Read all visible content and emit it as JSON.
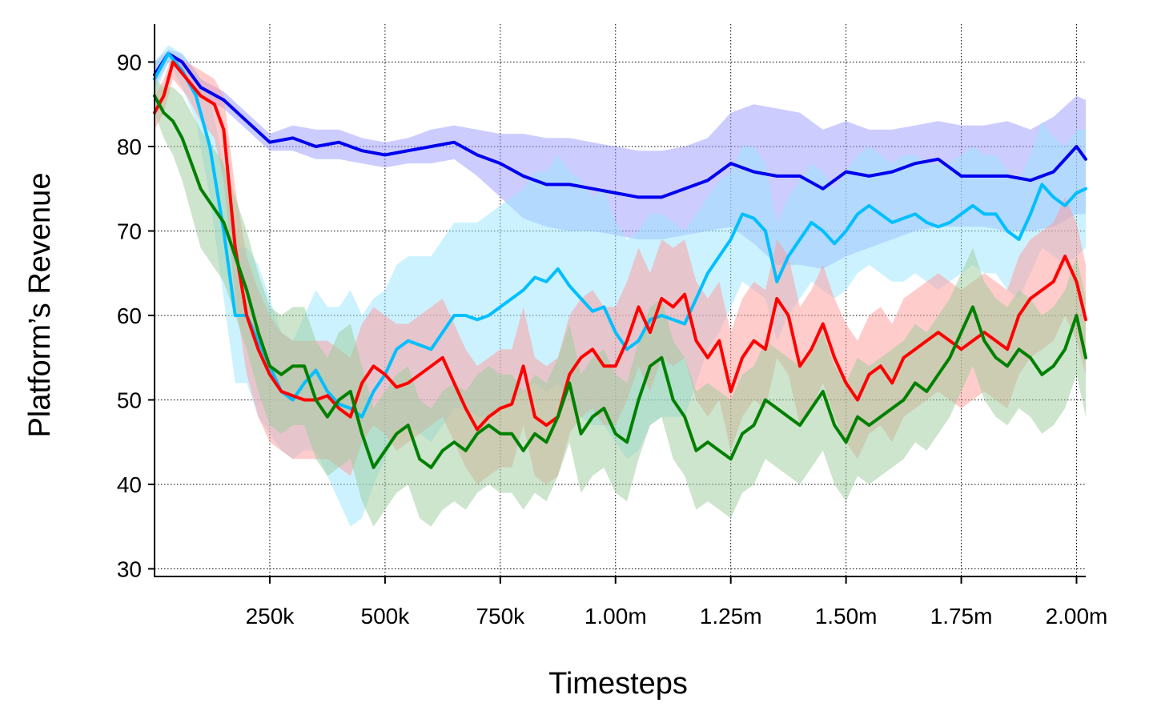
{
  "chart_data": {
    "type": "line",
    "xlabel": "Timesteps",
    "ylabel": "Platform’s Revenue",
    "xlim": [
      0,
      2020000
    ],
    "ylim": [
      29,
      94.5
    ],
    "x_ticks": [
      250000,
      500000,
      750000,
      1000000,
      1250000,
      1500000,
      1750000,
      2000000
    ],
    "x_tick_labels": [
      "250k",
      "500k",
      "750k",
      "1.00m",
      "1.25m",
      "1.50m",
      "1.75m",
      "2.00m"
    ],
    "y_ticks": [
      30,
      40,
      50,
      60,
      70,
      80,
      90
    ],
    "y_tick_labels": [
      "30",
      "40",
      "50",
      "60",
      "70",
      "80",
      "90"
    ],
    "grid": true,
    "series": [
      {
        "color": "#0000ee",
        "band_color": "#9999ff",
        "x": [
          0,
          30000,
          60000,
          100000,
          150000,
          200000,
          250000,
          300000,
          350000,
          400000,
          450000,
          500000,
          550000,
          600000,
          650000,
          700000,
          750000,
          800000,
          850000,
          900000,
          950000,
          1000000,
          1050000,
          1100000,
          1150000,
          1200000,
          1250000,
          1300000,
          1350000,
          1400000,
          1450000,
          1500000,
          1550000,
          1600000,
          1650000,
          1700000,
          1750000,
          1800000,
          1850000,
          1900000,
          1950000,
          2000000,
          2020000
        ],
        "y": [
          88.5,
          91,
          90,
          87,
          85.5,
          83,
          80.5,
          81,
          80,
          80.5,
          79.5,
          79,
          79.5,
          80,
          80.5,
          79,
          78,
          76.5,
          75.5,
          75.5,
          75,
          74.5,
          74,
          74,
          75,
          76,
          78,
          77,
          76.5,
          76.5,
          75,
          77,
          76.5,
          77,
          78,
          78.5,
          76.5,
          76.5,
          76.5,
          76,
          77,
          80,
          78.5
        ],
        "lower": [
          87,
          90,
          89,
          86,
          84.5,
          82,
          79.5,
          79.5,
          78.5,
          78.5,
          78,
          77.5,
          78,
          78,
          78.5,
          76.5,
          74,
          71.5,
          70.5,
          70,
          70,
          69.5,
          69,
          69,
          69.5,
          70,
          70.5,
          68.5,
          66,
          66,
          65.5,
          67,
          68,
          69,
          70,
          70.5,
          70.5,
          70.5,
          70,
          70,
          70.5,
          72,
          72
        ],
        "upper": [
          90,
          91.5,
          91,
          88,
          86.5,
          84,
          81.5,
          82.5,
          82,
          82,
          81,
          80.5,
          81,
          82,
          82.5,
          82,
          81.5,
          81.5,
          81,
          81,
          80.5,
          80,
          79.5,
          79.5,
          80,
          81,
          84,
          85,
          84.5,
          84,
          82,
          83,
          82,
          82,
          82.5,
          83,
          82.5,
          82.5,
          83,
          82,
          83.5,
          86,
          85.5
        ]
      },
      {
        "color": "#00bfff",
        "band_color": "#99e6ff",
        "x": [
          0,
          30000,
          60000,
          90000,
          120000,
          150000,
          175000,
          200000,
          225000,
          250000,
          275000,
          300000,
          325000,
          350000,
          375000,
          400000,
          425000,
          450000,
          475000,
          500000,
          525000,
          550000,
          575000,
          600000,
          625000,
          650000,
          675000,
          700000,
          725000,
          750000,
          775000,
          800000,
          825000,
          850000,
          875000,
          900000,
          925000,
          950000,
          975000,
          1000000,
          1025000,
          1050000,
          1075000,
          1100000,
          1125000,
          1150000,
          1175000,
          1200000,
          1225000,
          1250000,
          1275000,
          1300000,
          1325000,
          1350000,
          1375000,
          1400000,
          1425000,
          1450000,
          1475000,
          1500000,
          1525000,
          1550000,
          1575000,
          1600000,
          1625000,
          1650000,
          1675000,
          1700000,
          1725000,
          1750000,
          1775000,
          1800000,
          1825000,
          1850000,
          1875000,
          1900000,
          1925000,
          1950000,
          1975000,
          2000000,
          2020000
        ],
        "y": [
          88,
          91,
          89,
          86,
          80,
          70,
          60,
          60,
          57,
          54,
          51,
          50,
          52,
          53.5,
          51,
          49.5,
          49,
          48,
          51,
          53,
          56,
          57,
          56.5,
          56,
          58,
          60,
          60,
          59.5,
          60,
          61,
          62,
          63,
          64.5,
          64,
          65.5,
          63.5,
          62,
          60.5,
          61,
          58,
          56,
          57,
          59.5,
          60,
          59.5,
          59,
          62,
          65,
          67,
          69,
          72,
          71.5,
          70,
          64,
          67,
          69,
          71,
          70,
          68.5,
          70,
          72,
          73,
          72,
          71,
          71.5,
          72,
          71,
          70.5,
          71,
          72,
          73,
          72,
          72,
          70,
          69,
          72,
          75.5,
          74,
          73,
          74.5,
          75
        ],
        "lower": [
          86,
          90,
          87,
          83,
          74,
          62,
          52,
          52,
          48,
          46,
          44,
          43,
          44,
          44,
          41,
          38,
          35,
          36,
          40,
          43,
          46,
          47,
          46,
          45,
          47,
          49,
          49,
          48,
          48,
          49,
          50,
          51,
          52,
          51,
          52,
          50,
          48,
          47,
          47,
          45,
          43,
          44,
          47,
          48,
          48,
          48,
          52,
          56,
          58,
          61,
          64,
          63,
          62,
          57,
          60,
          62,
          64,
          63,
          62,
          63,
          65,
          66,
          65,
          64,
          64,
          65,
          64,
          63,
          64,
          65,
          66,
          65,
          65,
          63,
          62,
          65,
          68,
          67,
          66,
          67,
          68
        ],
        "upper": [
          90,
          92,
          91,
          89,
          86,
          78,
          68,
          68,
          66,
          62,
          58,
          57,
          60,
          63,
          61,
          61,
          63,
          60,
          62,
          63,
          66,
          67,
          67,
          67,
          69,
          71,
          71,
          71,
          72,
          73,
          74,
          75,
          77,
          77,
          79,
          77,
          76,
          74,
          75,
          71,
          69,
          70,
          72,
          72,
          71,
          70,
          72,
          74,
          76,
          77,
          80,
          80,
          78,
          71,
          74,
          76,
          78,
          77,
          75,
          77,
          79,
          80,
          79,
          78,
          79,
          79,
          78,
          78,
          78,
          79,
          80,
          79,
          79,
          77,
          76,
          79,
          83,
          81,
          80,
          82,
          82
        ]
      },
      {
        "color": "#ff0000",
        "band_color": "#ff9999",
        "x": [
          0,
          20000,
          40000,
          70000,
          100000,
          130000,
          150000,
          175000,
          200000,
          225000,
          250000,
          275000,
          300000,
          325000,
          350000,
          375000,
          400000,
          425000,
          450000,
          475000,
          500000,
          525000,
          550000,
          575000,
          600000,
          625000,
          650000,
          675000,
          700000,
          725000,
          750000,
          775000,
          800000,
          825000,
          850000,
          875000,
          900000,
          925000,
          950000,
          975000,
          1000000,
          1025000,
          1050000,
          1075000,
          1100000,
          1125000,
          1150000,
          1175000,
          1200000,
          1225000,
          1250000,
          1275000,
          1300000,
          1325000,
          1350000,
          1375000,
          1400000,
          1425000,
          1450000,
          1475000,
          1500000,
          1525000,
          1550000,
          1575000,
          1600000,
          1625000,
          1650000,
          1675000,
          1700000,
          1725000,
          1750000,
          1775000,
          1800000,
          1825000,
          1850000,
          1875000,
          1900000,
          1925000,
          1950000,
          1975000,
          2000000,
          2020000
        ],
        "y": [
          84,
          86,
          90,
          88,
          86,
          85,
          82,
          68,
          60,
          56,
          53,
          51,
          50.5,
          50,
          50,
          50.5,
          49,
          48,
          52,
          54,
          53,
          51.5,
          52,
          53,
          54,
          55,
          52,
          49,
          46.5,
          48,
          49,
          49.5,
          54,
          48,
          47,
          48,
          53,
          55,
          56,
          54,
          54,
          57,
          61,
          58,
          62,
          61,
          62.5,
          57,
          55,
          57,
          51,
          55,
          57,
          56,
          62,
          60,
          54,
          56,
          59,
          55,
          52,
          50,
          53,
          54,
          52,
          55,
          56,
          57,
          58,
          57,
          56,
          57,
          58,
          57,
          56,
          60,
          62,
          63,
          64,
          67,
          64,
          59.5
        ],
        "lower": [
          82,
          84,
          88,
          86,
          83,
          81,
          76,
          62,
          53,
          48,
          45,
          44,
          43,
          43,
          43,
          43,
          42,
          41,
          45,
          47,
          46,
          44,
          45,
          46,
          47,
          48,
          45,
          42,
          40,
          41,
          42,
          42,
          47,
          41,
          40,
          41,
          46,
          48,
          49,
          47,
          47,
          50,
          54,
          51,
          55,
          54,
          55,
          50,
          48,
          50,
          44,
          48,
          50,
          49,
          55,
          53,
          47,
          49,
          52,
          48,
          45,
          43,
          46,
          47,
          45,
          48,
          49,
          50,
          51,
          50,
          49,
          50,
          51,
          50,
          49,
          53,
          55,
          56,
          57,
          60,
          57,
          53
        ],
        "upper": [
          86,
          88,
          91,
          90,
          89,
          88,
          86,
          75,
          67,
          63,
          60,
          58,
          57,
          57,
          57,
          57,
          56,
          55,
          59,
          61,
          60,
          59,
          59,
          60,
          61,
          62,
          59,
          56,
          54,
          55,
          56,
          56,
          61,
          55,
          54,
          55,
          60,
          62,
          63,
          61,
          61,
          64,
          68,
          65,
          69,
          68,
          69,
          64,
          62,
          64,
          58,
          62,
          64,
          63,
          69,
          67,
          61,
          63,
          66,
          62,
          59,
          57,
          60,
          61,
          59,
          62,
          63,
          64,
          65,
          64,
          63,
          64,
          65,
          64,
          63,
          67,
          69,
          70,
          71,
          74,
          71,
          66
        ]
      },
      {
        "color": "#008000",
        "band_color": "#99cc99",
        "x": [
          0,
          20000,
          40000,
          60000,
          80000,
          100000,
          125000,
          150000,
          175000,
          200000,
          225000,
          250000,
          275000,
          300000,
          325000,
          350000,
          375000,
          400000,
          425000,
          450000,
          475000,
          500000,
          525000,
          550000,
          575000,
          600000,
          625000,
          650000,
          675000,
          700000,
          725000,
          750000,
          775000,
          800000,
          825000,
          850000,
          875000,
          900000,
          925000,
          950000,
          975000,
          1000000,
          1025000,
          1050000,
          1075000,
          1100000,
          1125000,
          1150000,
          1175000,
          1200000,
          1225000,
          1250000,
          1275000,
          1300000,
          1325000,
          1350000,
          1375000,
          1400000,
          1425000,
          1450000,
          1475000,
          1500000,
          1525000,
          1550000,
          1575000,
          1600000,
          1625000,
          1650000,
          1675000,
          1700000,
          1725000,
          1750000,
          1775000,
          1800000,
          1825000,
          1850000,
          1875000,
          1900000,
          1925000,
          1950000,
          1975000,
          2000000,
          2020000
        ],
        "y": [
          86,
          84,
          83,
          81,
          78,
          75,
          73,
          71,
          67,
          63,
          58,
          54,
          53,
          54,
          54,
          50,
          48,
          50,
          51,
          46,
          42,
          44,
          46,
          47,
          43,
          42,
          44,
          45,
          44,
          46,
          47,
          46,
          46,
          44,
          46,
          45,
          48,
          52,
          46,
          48,
          49,
          46,
          45,
          50,
          54,
          55,
          50,
          48,
          44,
          45,
          44,
          43,
          46,
          47,
          50,
          49,
          48,
          47,
          49,
          51,
          47,
          45,
          48,
          47,
          48,
          49,
          50,
          52,
          51,
          53,
          55,
          58,
          61,
          57,
          55,
          54,
          56,
          55,
          53,
          54,
          56,
          60,
          55
        ],
        "lower": [
          84,
          81,
          79,
          76,
          72,
          68,
          66,
          64,
          60,
          56,
          51,
          47,
          46,
          47,
          47,
          43,
          41,
          42,
          43,
          38,
          35,
          37,
          39,
          40,
          36,
          35,
          37,
          38,
          37,
          39,
          40,
          39,
          39,
          37,
          39,
          38,
          41,
          45,
          39,
          41,
          42,
          39,
          38,
          43,
          47,
          48,
          43,
          41,
          37,
          38,
          37,
          36,
          39,
          40,
          43,
          42,
          41,
          40,
          42,
          44,
          40,
          38,
          41,
          40,
          41,
          42,
          43,
          45,
          44,
          46,
          48,
          51,
          54,
          50,
          48,
          47,
          49,
          48,
          46,
          47,
          49,
          53,
          48
        ],
        "upper": [
          88,
          87,
          87,
          86,
          84,
          82,
          80,
          78,
          74,
          70,
          65,
          61,
          60,
          61,
          61,
          57,
          55,
          58,
          59,
          54,
          49,
          51,
          53,
          54,
          50,
          49,
          51,
          52,
          51,
          53,
          54,
          53,
          53,
          51,
          53,
          52,
          55,
          59,
          53,
          55,
          56,
          53,
          52,
          57,
          61,
          62,
          57,
          55,
          51,
          52,
          51,
          50,
          53,
          54,
          57,
          56,
          55,
          54,
          56,
          58,
          54,
          52,
          55,
          54,
          55,
          56,
          57,
          59,
          58,
          60,
          62,
          65,
          68,
          64,
          62,
          61,
          63,
          62,
          60,
          61,
          63,
          67,
          62
        ]
      }
    ]
  }
}
